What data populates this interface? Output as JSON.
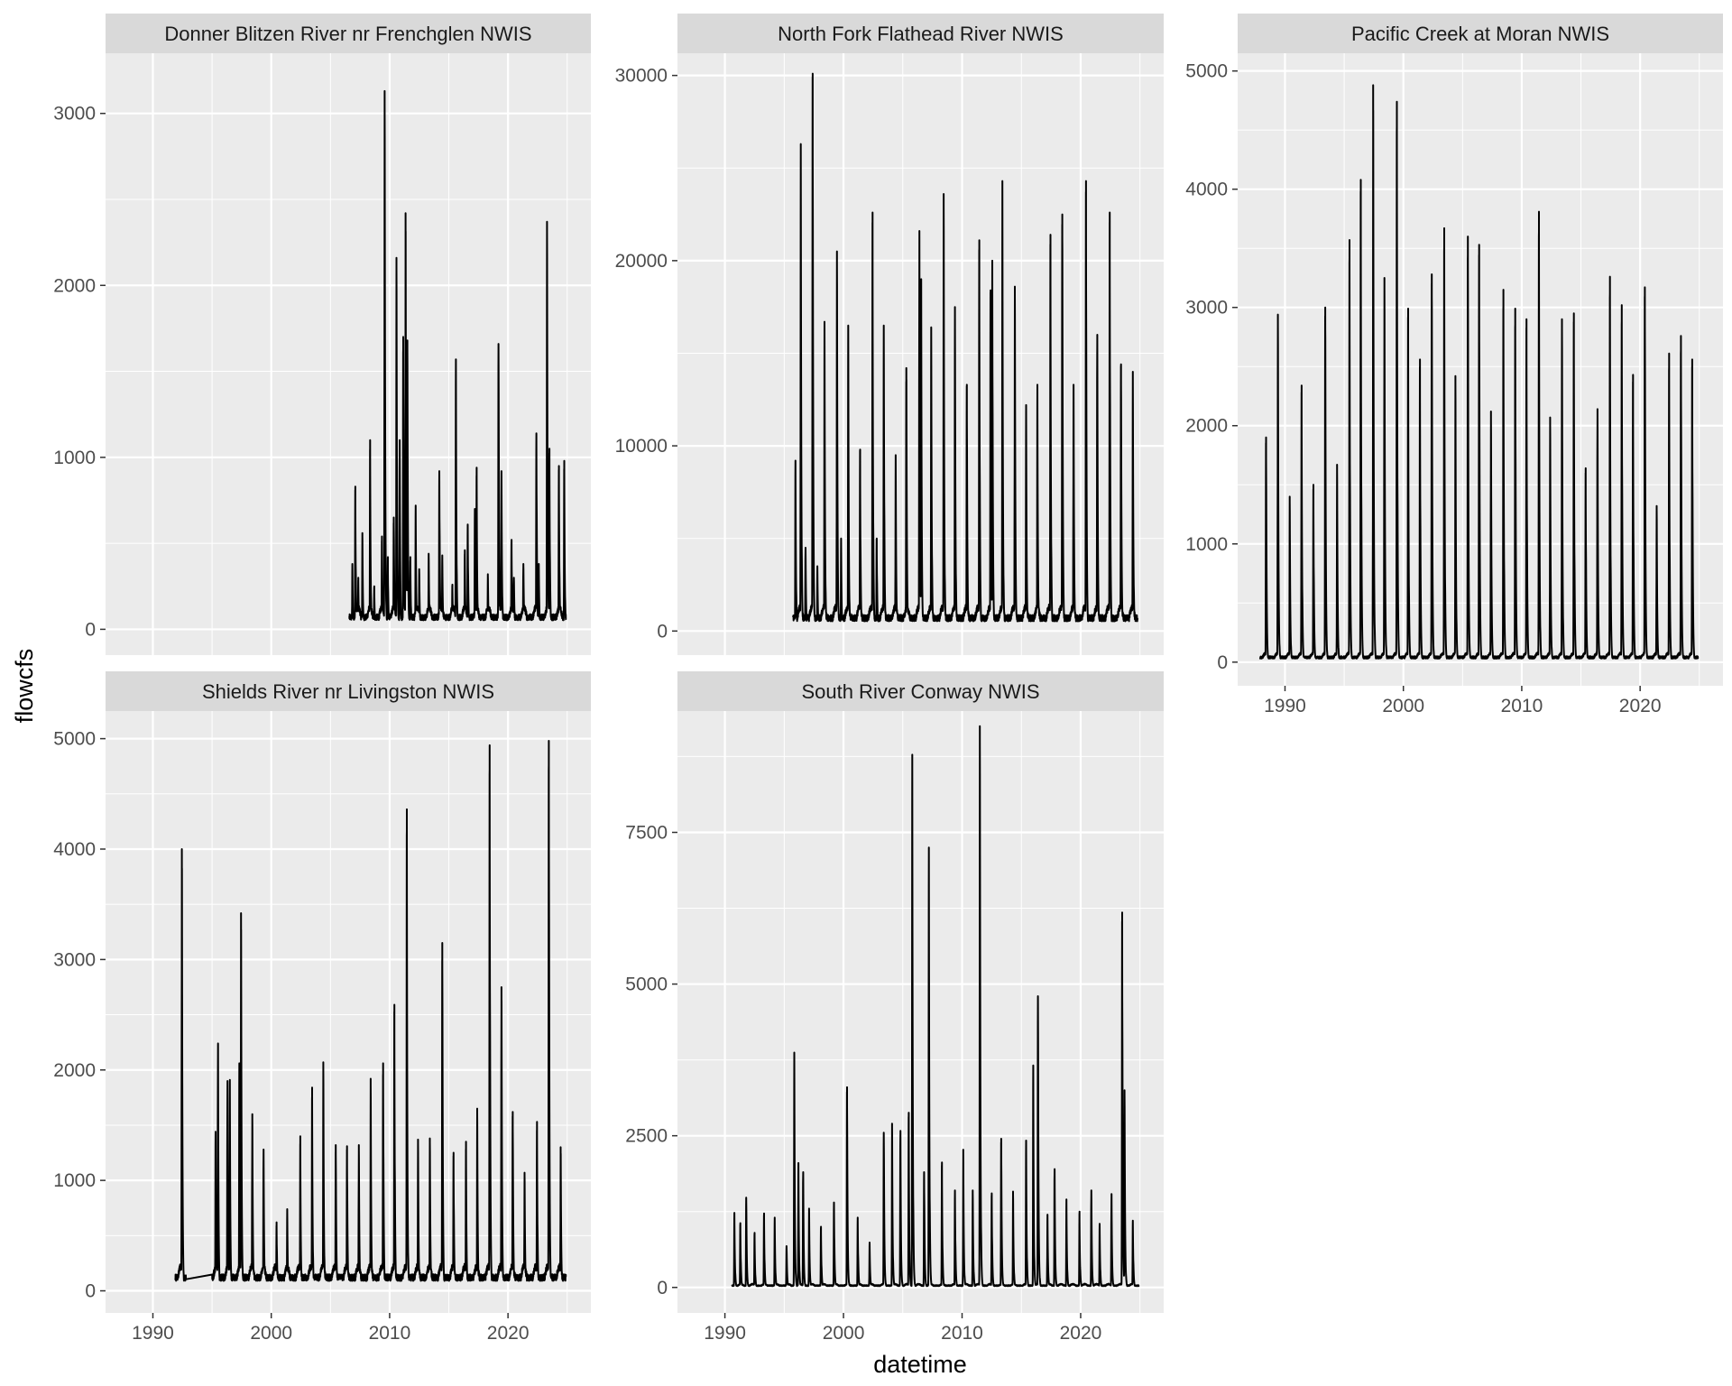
{
  "chart_data": {
    "type": "line",
    "xlabel": "datetime",
    "ylabel": "flowcfs",
    "x_ticks": [
      "1990",
      "2000",
      "2010",
      "2020"
    ],
    "x_range": [
      1986,
      2027
    ],
    "line_color": "#000000",
    "panel_background": "#ebebeb",
    "strip_background": "#d9d9d9",
    "grid_color": "#ffffff",
    "grid": true,
    "panels": [
      {
        "name": "Donner Blitzen River nr Frenchglen NWIS",
        "y_ticks": [
          0,
          1000,
          2000,
          3000
        ],
        "ylim": [
          -150,
          3350
        ],
        "baseline": 70,
        "start": 2006.6,
        "end": 2024.9,
        "peaks": [
          {
            "x": 2006.85,
            "y": 380
          },
          {
            "x": 2007.1,
            "y": 830
          },
          {
            "x": 2007.35,
            "y": 300
          },
          {
            "x": 2007.7,
            "y": 560
          },
          {
            "x": 2008.35,
            "y": 1100
          },
          {
            "x": 2008.7,
            "y": 250
          },
          {
            "x": 2009.35,
            "y": 540
          },
          {
            "x": 2009.58,
            "y": 3130
          },
          {
            "x": 2009.85,
            "y": 420
          },
          {
            "x": 2010.35,
            "y": 650
          },
          {
            "x": 2010.58,
            "y": 2160
          },
          {
            "x": 2010.85,
            "y": 1100
          },
          {
            "x": 2011.15,
            "y": 1700
          },
          {
            "x": 2011.35,
            "y": 2420
          },
          {
            "x": 2011.5,
            "y": 1680
          },
          {
            "x": 2011.75,
            "y": 420
          },
          {
            "x": 2012.2,
            "y": 720
          },
          {
            "x": 2012.5,
            "y": 350
          },
          {
            "x": 2013.3,
            "y": 440
          },
          {
            "x": 2014.2,
            "y": 920
          },
          {
            "x": 2014.45,
            "y": 430
          },
          {
            "x": 2015.3,
            "y": 260
          },
          {
            "x": 2015.6,
            "y": 1570
          },
          {
            "x": 2016.35,
            "y": 460
          },
          {
            "x": 2016.6,
            "y": 610
          },
          {
            "x": 2017.2,
            "y": 700
          },
          {
            "x": 2017.35,
            "y": 940
          },
          {
            "x": 2018.3,
            "y": 320
          },
          {
            "x": 2019.2,
            "y": 1660
          },
          {
            "x": 2019.45,
            "y": 920
          },
          {
            "x": 2020.3,
            "y": 520
          },
          {
            "x": 2020.5,
            "y": 300
          },
          {
            "x": 2021.3,
            "y": 380
          },
          {
            "x": 2022.4,
            "y": 1140
          },
          {
            "x": 2022.6,
            "y": 380
          },
          {
            "x": 2023.3,
            "y": 2370
          },
          {
            "x": 2023.5,
            "y": 1050
          },
          {
            "x": 2024.3,
            "y": 950
          },
          {
            "x": 2024.75,
            "y": 980
          }
        ]
      },
      {
        "name": "North Fork Flathead River NWIS",
        "y_ticks": [
          0,
          10000,
          20000,
          30000
        ],
        "ylim": [
          -1300,
          31200
        ],
        "baseline": 700,
        "start": 1995.75,
        "end": 2024.8,
        "peaks": [
          {
            "x": 1995.95,
            "y": 9200
          },
          {
            "x": 1996.4,
            "y": 26300
          },
          {
            "x": 1996.8,
            "y": 4500
          },
          {
            "x": 1997.4,
            "y": 30100
          },
          {
            "x": 1997.8,
            "y": 3500
          },
          {
            "x": 1998.4,
            "y": 16700
          },
          {
            "x": 1999.45,
            "y": 20500
          },
          {
            "x": 1999.8,
            "y": 5000
          },
          {
            "x": 2000.4,
            "y": 16500
          },
          {
            "x": 2001.4,
            "y": 9800
          },
          {
            "x": 2002.45,
            "y": 22600
          },
          {
            "x": 2002.8,
            "y": 5000
          },
          {
            "x": 2003.4,
            "y": 16500
          },
          {
            "x": 2004.4,
            "y": 9500
          },
          {
            "x": 2005.3,
            "y": 14200
          },
          {
            "x": 2006.4,
            "y": 21600
          },
          {
            "x": 2006.55,
            "y": 19000
          },
          {
            "x": 2007.4,
            "y": 16400
          },
          {
            "x": 2008.45,
            "y": 23600
          },
          {
            "x": 2009.4,
            "y": 17500
          },
          {
            "x": 2010.4,
            "y": 13300
          },
          {
            "x": 2011.45,
            "y": 21100
          },
          {
            "x": 2012.4,
            "y": 18400
          },
          {
            "x": 2012.55,
            "y": 20000
          },
          {
            "x": 2013.4,
            "y": 24300
          },
          {
            "x": 2014.45,
            "y": 18600
          },
          {
            "x": 2015.4,
            "y": 12200
          },
          {
            "x": 2016.35,
            "y": 13300
          },
          {
            "x": 2017.45,
            "y": 21400
          },
          {
            "x": 2018.45,
            "y": 22500
          },
          {
            "x": 2019.4,
            "y": 13300
          },
          {
            "x": 2020.45,
            "y": 24300
          },
          {
            "x": 2021.4,
            "y": 16000
          },
          {
            "x": 2022.45,
            "y": 22600
          },
          {
            "x": 2023.4,
            "y": 14400
          },
          {
            "x": 2024.4,
            "y": 14000
          }
        ]
      },
      {
        "name": "Pacific Creek at Moran NWIS",
        "y_ticks": [
          0,
          1000,
          2000,
          3000,
          4000,
          5000
        ],
        "ylim": [
          -200,
          5150
        ],
        "baseline": 40,
        "start": 1987.9,
        "end": 2024.9,
        "peaks": [
          {
            "x": 1988.4,
            "y": 1900
          },
          {
            "x": 1989.4,
            "y": 2940
          },
          {
            "x": 1990.4,
            "y": 1400
          },
          {
            "x": 1991.4,
            "y": 2340
          },
          {
            "x": 1992.4,
            "y": 1500
          },
          {
            "x": 1993.4,
            "y": 3000
          },
          {
            "x": 1994.4,
            "y": 1670
          },
          {
            "x": 1995.45,
            "y": 3570
          },
          {
            "x": 1996.4,
            "y": 4080
          },
          {
            "x": 1997.45,
            "y": 4880
          },
          {
            "x": 1998.4,
            "y": 3250
          },
          {
            "x": 1999.45,
            "y": 4740
          },
          {
            "x": 2000.4,
            "y": 2990
          },
          {
            "x": 2001.4,
            "y": 2560
          },
          {
            "x": 2002.4,
            "y": 3280
          },
          {
            "x": 2003.45,
            "y": 3670
          },
          {
            "x": 2004.4,
            "y": 2420
          },
          {
            "x": 2005.45,
            "y": 3600
          },
          {
            "x": 2006.4,
            "y": 3530
          },
          {
            "x": 2007.4,
            "y": 2120
          },
          {
            "x": 2008.45,
            "y": 3150
          },
          {
            "x": 2009.45,
            "y": 2990
          },
          {
            "x": 2010.4,
            "y": 2900
          },
          {
            "x": 2011.45,
            "y": 3810
          },
          {
            "x": 2012.4,
            "y": 2070
          },
          {
            "x": 2013.4,
            "y": 2900
          },
          {
            "x": 2014.4,
            "y": 2950
          },
          {
            "x": 2015.4,
            "y": 1640
          },
          {
            "x": 2016.4,
            "y": 2140
          },
          {
            "x": 2017.45,
            "y": 3260
          },
          {
            "x": 2018.45,
            "y": 3020
          },
          {
            "x": 2019.4,
            "y": 2430
          },
          {
            "x": 2020.4,
            "y": 3170
          },
          {
            "x": 2021.4,
            "y": 1320
          },
          {
            "x": 2022.45,
            "y": 2610
          },
          {
            "x": 2023.45,
            "y": 2760
          },
          {
            "x": 2024.4,
            "y": 2560
          }
        ]
      },
      {
        "name": "Shields River nr Livingston NWIS",
        "y_ticks": [
          0,
          1000,
          2000,
          3000,
          4000,
          5000
        ],
        "ylim": [
          -200,
          5250
        ],
        "baseline": 120,
        "start": 1991.9,
        "end": 2024.9,
        "gap": [
          1992.8,
          1995.0
        ],
        "peaks": [
          {
            "x": 1992.45,
            "y": 4000
          },
          {
            "x": 1995.3,
            "y": 1440
          },
          {
            "x": 1995.5,
            "y": 2240
          },
          {
            "x": 1996.3,
            "y": 1900
          },
          {
            "x": 1996.5,
            "y": 1910
          },
          {
            "x": 1997.3,
            "y": 2060
          },
          {
            "x": 1997.45,
            "y": 3420
          },
          {
            "x": 1998.4,
            "y": 1600
          },
          {
            "x": 1999.35,
            "y": 1280
          },
          {
            "x": 2000.45,
            "y": 620
          },
          {
            "x": 2001.35,
            "y": 740
          },
          {
            "x": 2002.45,
            "y": 1400
          },
          {
            "x": 2003.45,
            "y": 1840
          },
          {
            "x": 2004.4,
            "y": 2070
          },
          {
            "x": 2005.45,
            "y": 1320
          },
          {
            "x": 2006.4,
            "y": 1310
          },
          {
            "x": 2007.4,
            "y": 1320
          },
          {
            "x": 2008.4,
            "y": 1920
          },
          {
            "x": 2009.45,
            "y": 2060
          },
          {
            "x": 2010.4,
            "y": 2590
          },
          {
            "x": 2011.45,
            "y": 4360
          },
          {
            "x": 2012.4,
            "y": 1370
          },
          {
            "x": 2013.4,
            "y": 1380
          },
          {
            "x": 2014.45,
            "y": 3150
          },
          {
            "x": 2015.4,
            "y": 1250
          },
          {
            "x": 2016.45,
            "y": 1350
          },
          {
            "x": 2017.4,
            "y": 1650
          },
          {
            "x": 2018.45,
            "y": 4940
          },
          {
            "x": 2019.45,
            "y": 2750
          },
          {
            "x": 2020.4,
            "y": 1620
          },
          {
            "x": 2021.4,
            "y": 1070
          },
          {
            "x": 2022.45,
            "y": 1530
          },
          {
            "x": 2023.45,
            "y": 4980
          },
          {
            "x": 2024.45,
            "y": 1300
          }
        ]
      },
      {
        "name": "South River Conway NWIS",
        "y_ticks": [
          0,
          2500,
          5000,
          7500
        ],
        "ylim": [
          -420,
          9500
        ],
        "baseline": 30,
        "start": 1990.6,
        "end": 2024.9,
        "peaks": [
          {
            "x": 1990.8,
            "y": 1230
          },
          {
            "x": 1991.3,
            "y": 1060
          },
          {
            "x": 1991.8,
            "y": 1480
          },
          {
            "x": 1992.5,
            "y": 900
          },
          {
            "x": 1993.3,
            "y": 1220
          },
          {
            "x": 1994.2,
            "y": 1150
          },
          {
            "x": 1995.2,
            "y": 680
          },
          {
            "x": 1995.85,
            "y": 3870
          },
          {
            "x": 1996.2,
            "y": 2050
          },
          {
            "x": 1996.6,
            "y": 1900
          },
          {
            "x": 1997.1,
            "y": 1300
          },
          {
            "x": 1998.1,
            "y": 1000
          },
          {
            "x": 1999.2,
            "y": 1400
          },
          {
            "x": 2000.3,
            "y": 3300
          },
          {
            "x": 2001.2,
            "y": 1150
          },
          {
            "x": 2002.2,
            "y": 740
          },
          {
            "x": 2003.4,
            "y": 2550
          },
          {
            "x": 2004.1,
            "y": 2700
          },
          {
            "x": 2004.8,
            "y": 2580
          },
          {
            "x": 2005.5,
            "y": 2880
          },
          {
            "x": 2005.8,
            "y": 8780
          },
          {
            "x": 2006.8,
            "y": 1900
          },
          {
            "x": 2007.2,
            "y": 7250
          },
          {
            "x": 2008.3,
            "y": 2060
          },
          {
            "x": 2009.4,
            "y": 1600
          },
          {
            "x": 2010.1,
            "y": 2270
          },
          {
            "x": 2010.9,
            "y": 1600
          },
          {
            "x": 2011.5,
            "y": 9250
          },
          {
            "x": 2012.5,
            "y": 1550
          },
          {
            "x": 2013.3,
            "y": 2450
          },
          {
            "x": 2014.3,
            "y": 1580
          },
          {
            "x": 2015.4,
            "y": 2420
          },
          {
            "x": 2016.0,
            "y": 3660
          },
          {
            "x": 2016.4,
            "y": 4800
          },
          {
            "x": 2017.2,
            "y": 1200
          },
          {
            "x": 2017.8,
            "y": 1950
          },
          {
            "x": 2018.8,
            "y": 1450
          },
          {
            "x": 2019.9,
            "y": 1250
          },
          {
            "x": 2020.9,
            "y": 1600
          },
          {
            "x": 2021.6,
            "y": 1050
          },
          {
            "x": 2022.6,
            "y": 1540
          },
          {
            "x": 2023.5,
            "y": 6180
          },
          {
            "x": 2023.7,
            "y": 3250
          },
          {
            "x": 2024.4,
            "y": 1100
          }
        ]
      }
    ]
  }
}
